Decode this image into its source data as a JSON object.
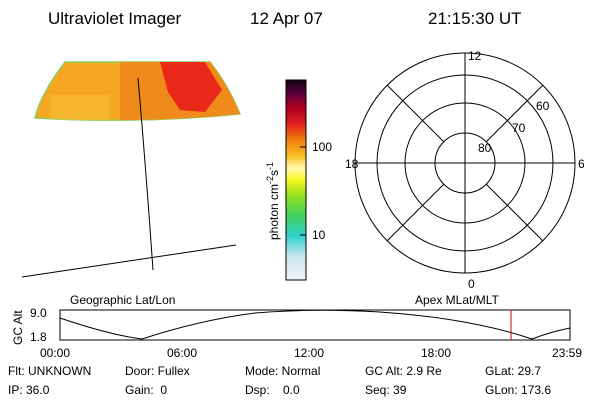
{
  "header": {
    "title": "Ultraviolet Imager",
    "date": "12 Apr 07",
    "time": "21:15:30 UT"
  },
  "colorbar": {
    "label": [
      "photon cm",
      "-2",
      "s",
      "-1"
    ],
    "ticks": [
      "100",
      "10"
    ]
  },
  "polar": {
    "mlt_labels": [
      "12",
      "6",
      "0",
      "18"
    ],
    "lat_labels": [
      "60",
      "70",
      "80"
    ]
  },
  "orbit": {
    "left_title": "Geographic Lat/Lon",
    "right_title": "Apex MLat/MLT",
    "axis_label": "GC Alt",
    "y_labels": [
      "9.0",
      "1.8"
    ],
    "time_labels": [
      "00:00",
      "06:00",
      "12:00",
      "18:00",
      "23:59"
    ]
  },
  "info": {
    "rows": [
      [
        "Flt: UNKNOWN",
        "Door: Fullex",
        "Mode: Normal",
        "GC Alt: 2.9 Re",
        "GLat: 29.7"
      ],
      [
        "IP: 36.0",
        "Gain:  0",
        "Dsp:    0.0",
        "Seq: 39",
        "GLon: 173.6"
      ]
    ]
  }
}
